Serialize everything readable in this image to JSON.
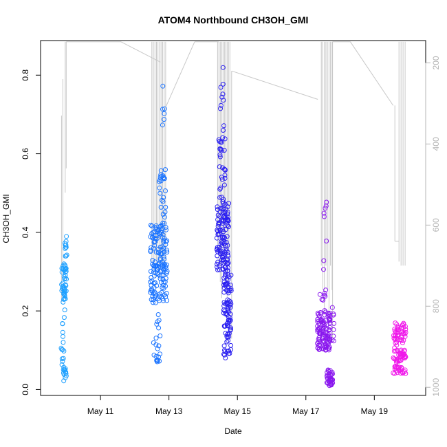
{
  "chart_data": {
    "type": "scatter",
    "title": "ATOM4 Northbound CH3OH_GMI",
    "xlabel": "Date",
    "ylabel": "CH3OH_GMI",
    "x_unit": "day of May",
    "xlim": [
      9.25,
      20.5
    ],
    "ylim": [
      -0.015,
      0.888
    ],
    "yticks": [
      0.0,
      0.2,
      0.4,
      0.6,
      0.8
    ],
    "xticks": [
      {
        "label": "May 11",
        "value": 11
      },
      {
        "label": "May 13",
        "value": 13
      },
      {
        "label": "May 15",
        "value": 15
      },
      {
        "label": "May 17",
        "value": 17
      },
      {
        "label": "May 19",
        "value": 19
      }
    ],
    "secondary_axis": {
      "label": "",
      "reversed": true,
      "ylim": [
        1020,
        145
      ],
      "ticks": [
        200,
        400,
        600,
        800,
        1000
      ],
      "color": "#b4b4b4"
    },
    "point_style": "open circle",
    "line_color": "#c8c8c8",
    "series": [
      {
        "color": "#1ea0ff",
        "clusters": [
          {
            "x_range": [
              9.85,
              9.98
            ],
            "y_range": [
              0.22,
              0.32
            ],
            "n": 30
          },
          {
            "x_range": [
              9.85,
              9.95
            ],
            "y_range": [
              0.05,
              0.15
            ],
            "n": 12
          },
          {
            "x_range": [
              9.92,
              10.0
            ],
            "y_range": [
              0.01,
              0.06
            ],
            "n": 12
          },
          {
            "x_range": [
              9.95,
              10.02
            ],
            "y_range": [
              0.23,
              0.39
            ],
            "n": 25
          },
          {
            "x_range": [
              9.88,
              9.98
            ],
            "y_range": [
              0.16,
              0.22
            ],
            "n": 4
          }
        ]
      },
      {
        "color": "#1a73ff",
        "clusters": [
          {
            "x_range": [
              12.45,
              12.95
            ],
            "y_range": [
              0.22,
              0.42
            ],
            "n": 150
          },
          {
            "x_range": [
              12.55,
              12.75
            ],
            "y_range": [
              0.07,
              0.2
            ],
            "n": 20
          },
          {
            "x_range": [
              12.7,
              12.92
            ],
            "y_range": [
              0.42,
              0.56
            ],
            "n": 25
          },
          {
            "x_range": [
              12.8,
              12.88
            ],
            "y_range": [
              0.64,
              0.85
            ],
            "n": 6
          }
        ]
      },
      {
        "color": "#2a1ff0",
        "clusters": [
          {
            "x_range": [
              14.4,
              14.75
            ],
            "y_range": [
              0.3,
              0.48
            ],
            "n": 120
          },
          {
            "x_range": [
              14.45,
              14.65
            ],
            "y_range": [
              0.48,
              0.68
            ],
            "n": 30
          },
          {
            "x_range": [
              14.5,
              14.62
            ],
            "y_range": [
              0.7,
              0.83
            ],
            "n": 8
          },
          {
            "x_range": [
              14.6,
              14.82
            ],
            "y_range": [
              0.08,
              0.3
            ],
            "n": 90
          }
        ]
      },
      {
        "color": "#8a18ee",
        "clusters": [
          {
            "x_range": [
              17.33,
              17.72
            ],
            "y_range": [
              0.1,
              0.2
            ],
            "n": 110
          },
          {
            "x_range": [
              17.5,
              17.62
            ],
            "y_range": [
              0.3,
              0.48
            ],
            "n": 8
          },
          {
            "x_range": [
              17.6,
              17.78
            ],
            "y_range": [
              0.01,
              0.05
            ],
            "n": 40
          },
          {
            "x_range": [
              17.38,
              17.62
            ],
            "y_range": [
              0.2,
              0.26
            ],
            "n": 8
          },
          {
            "x_range": [
              17.75,
              17.82
            ],
            "y_range": [
              0.1,
              0.22
            ],
            "n": 8
          }
        ]
      },
      {
        "color": "#f018ea",
        "clusters": [
          {
            "x_range": [
              19.55,
              19.92
            ],
            "y_range": [
              0.04,
              0.17
            ],
            "n": 110
          }
        ]
      }
    ]
  }
}
